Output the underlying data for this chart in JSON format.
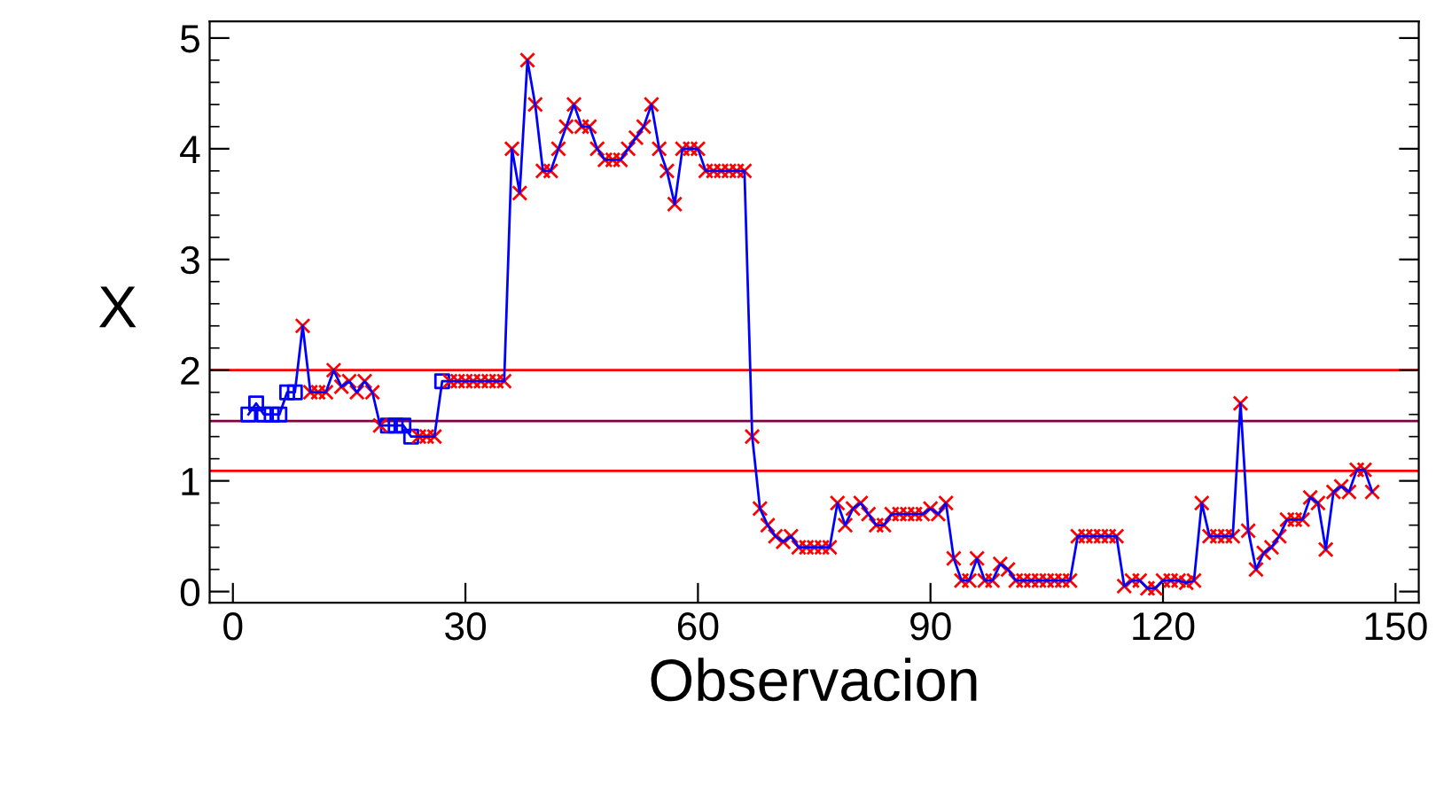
{
  "chart_data": {
    "type": "line",
    "xlabel": "Observacion",
    "ylabel": "X",
    "x": [
      2,
      3,
      4,
      5,
      6,
      7,
      8,
      9,
      10,
      11,
      12,
      13,
      14,
      15,
      16,
      17,
      18,
      19,
      20,
      21,
      22,
      23,
      24,
      25,
      26,
      27,
      28,
      29,
      30,
      31,
      32,
      33,
      34,
      35,
      36,
      37,
      38,
      39,
      40,
      41,
      42,
      43,
      44,
      45,
      46,
      47,
      48,
      49,
      50,
      51,
      52,
      53,
      54,
      55,
      56,
      57,
      58,
      59,
      60,
      61,
      62,
      63,
      64,
      65,
      66,
      67,
      68,
      69,
      70,
      71,
      72,
      73,
      74,
      75,
      76,
      77,
      78,
      79,
      80,
      81,
      82,
      83,
      84,
      85,
      86,
      87,
      88,
      89,
      90,
      91,
      92,
      93,
      94,
      95,
      96,
      97,
      98,
      99,
      100,
      101,
      102,
      103,
      104,
      105,
      106,
      107,
      108,
      109,
      110,
      111,
      112,
      113,
      114,
      115,
      116,
      117,
      118,
      119,
      120,
      121,
      122,
      123,
      124,
      125,
      126,
      127,
      128,
      129,
      130,
      131,
      132,
      133,
      134,
      135,
      136,
      137,
      138,
      139,
      140,
      141,
      142,
      143,
      144,
      145,
      146,
      147
    ],
    "series": [
      {
        "color": "#0000ff",
        "marker": "none",
        "values": [
          1.6,
          1.7,
          1.6,
          1.6,
          1.6,
          1.8,
          1.8,
          2.4,
          1.8,
          1.8,
          1.8,
          2.0,
          1.85,
          1.9,
          1.8,
          1.9,
          1.8,
          1.5,
          1.5,
          1.5,
          1.5,
          1.4,
          1.4,
          1.4,
          1.4,
          1.9,
          1.9,
          1.9,
          1.9,
          1.9,
          1.9,
          1.9,
          1.9,
          1.9,
          4.0,
          3.6,
          4.8,
          4.4,
          3.8,
          3.8,
          4.0,
          4.2,
          4.4,
          4.2,
          4.2,
          4.0,
          3.9,
          3.9,
          3.9,
          4.0,
          4.1,
          4.2,
          4.4,
          4.0,
          3.8,
          3.5,
          4.0,
          4.0,
          4.0,
          3.8,
          3.8,
          3.8,
          3.8,
          3.8,
          3.8,
          1.4,
          0.75,
          0.6,
          0.5,
          0.45,
          0.5,
          0.4,
          0.4,
          0.4,
          0.4,
          0.4,
          0.8,
          0.6,
          0.75,
          0.8,
          0.7,
          0.6,
          0.6,
          0.7,
          0.7,
          0.7,
          0.7,
          0.7,
          0.75,
          0.7,
          0.8,
          0.3,
          0.1,
          0.1,
          0.3,
          0.1,
          0.1,
          0.25,
          0.2,
          0.1,
          0.1,
          0.1,
          0.1,
          0.1,
          0.1,
          0.1,
          0.1,
          0.5,
          0.5,
          0.5,
          0.5,
          0.5,
          0.5,
          0.05,
          0.1,
          0.1,
          0.03,
          0.03,
          0.1,
          0.1,
          0.1,
          0.08,
          0.1,
          0.8,
          0.5,
          0.5,
          0.5,
          0.5,
          1.7,
          0.55,
          0.2,
          0.35,
          0.4,
          0.5,
          0.65,
          0.65,
          0.65,
          0.85,
          0.8,
          0.38,
          0.9,
          0.95,
          0.9,
          1.1,
          1.1,
          0.9
        ]
      },
      {
        "type": "scatter",
        "color": "#0000ff",
        "marker": "square",
        "values": [
          1.6,
          1.7,
          1.6,
          1.6,
          1.6,
          1.8,
          1.8,
          null,
          null,
          null,
          null,
          null,
          null,
          null,
          null,
          null,
          null,
          null,
          1.5,
          1.5,
          1.5,
          1.4,
          null,
          null,
          null,
          1.9,
          null,
          null,
          null,
          null,
          null,
          null,
          null,
          null,
          null,
          null,
          null,
          null,
          null,
          null,
          null,
          null,
          null,
          null,
          null,
          null,
          null,
          null,
          null,
          null,
          null,
          null,
          null,
          null,
          null,
          null,
          null,
          null,
          null,
          null,
          null,
          null,
          null,
          null,
          null,
          null,
          null,
          null,
          null,
          null,
          null,
          null,
          null,
          null,
          null,
          null,
          null,
          null,
          null,
          null,
          null,
          null,
          null,
          null,
          null,
          null,
          null,
          null,
          null,
          null,
          null,
          null,
          null,
          null,
          null,
          null,
          null,
          null,
          null,
          null,
          null,
          null,
          null,
          null,
          null,
          null,
          null,
          null,
          null,
          null,
          null,
          null,
          null,
          null,
          null,
          null,
          null,
          null,
          null,
          null,
          null,
          null,
          null,
          null,
          null,
          null,
          null,
          null,
          null,
          null,
          null,
          null,
          null,
          null,
          null,
          null,
          null,
          null,
          null,
          null,
          null,
          null,
          null,
          null,
          null,
          null
        ]
      },
      {
        "type": "scatter",
        "color": "#ff0000",
        "marker": "cross",
        "values": [
          null,
          null,
          null,
          null,
          null,
          null,
          null,
          2.4,
          1.8,
          1.8,
          1.8,
          2.0,
          1.85,
          1.9,
          1.8,
          1.9,
          1.8,
          1.5,
          null,
          null,
          null,
          null,
          1.4,
          1.4,
          1.4,
          null,
          1.9,
          1.9,
          1.9,
          1.9,
          1.9,
          1.9,
          1.9,
          1.9,
          4.0,
          3.6,
          4.8,
          4.4,
          3.8,
          3.8,
          4.0,
          4.2,
          4.4,
          4.2,
          4.2,
          4.0,
          3.9,
          3.9,
          3.9,
          4.0,
          4.1,
          4.2,
          4.4,
          4.0,
          3.8,
          3.5,
          4.0,
          4.0,
          4.0,
          3.8,
          3.8,
          3.8,
          3.8,
          3.8,
          3.8,
          1.4,
          0.75,
          0.6,
          0.5,
          0.45,
          0.5,
          0.4,
          0.4,
          0.4,
          0.4,
          0.4,
          0.8,
          0.6,
          0.75,
          0.8,
          0.7,
          0.6,
          0.6,
          0.7,
          0.7,
          0.7,
          0.7,
          0.7,
          0.75,
          0.7,
          0.8,
          0.3,
          0.1,
          0.1,
          0.3,
          0.1,
          0.1,
          0.25,
          0.2,
          0.1,
          0.1,
          0.1,
          0.1,
          0.1,
          0.1,
          0.1,
          0.1,
          0.5,
          0.5,
          0.5,
          0.5,
          0.5,
          0.5,
          0.05,
          0.1,
          0.1,
          0.03,
          0.03,
          0.1,
          0.1,
          0.1,
          0.08,
          0.1,
          0.8,
          0.5,
          0.5,
          0.5,
          0.5,
          1.7,
          0.55,
          0.2,
          0.35,
          0.4,
          0.5,
          0.65,
          0.65,
          0.65,
          0.85,
          0.8,
          0.38,
          0.9,
          0.95,
          0.9,
          1.1,
          1.1,
          0.9
        ]
      }
    ],
    "ref_lines": [
      {
        "axis": "y",
        "value": 2.0,
        "color": "#ff0000"
      },
      {
        "axis": "y",
        "value": 1.54,
        "color": "#800040"
      },
      {
        "axis": "y",
        "value": 1.09,
        "color": "#ff0000"
      }
    ],
    "xlim": [
      -3,
      153
    ],
    "ylim": [
      -0.1,
      5.15
    ],
    "xticks": [
      0,
      30,
      60,
      90,
      120,
      150
    ],
    "yticks": [
      0,
      1,
      2,
      3,
      4,
      5
    ],
    "grid": false,
    "legend": false
  }
}
